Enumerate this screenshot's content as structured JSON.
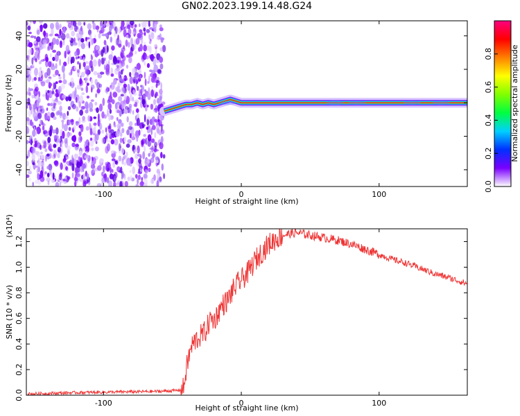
{
  "title": "GN02.2023.199.14.48.G24",
  "chart_data": [
    {
      "type": "heatmap",
      "title": "GN02.2023.199.14.48.G24",
      "xlabel": "Height of straight line (km)",
      "ylabel": "Frequency (Hz)",
      "xlim": [
        -156,
        164
      ],
      "ylim": [
        -50,
        49
      ],
      "x_ticks": [
        "-100",
        "0",
        "100"
      ],
      "y_ticks": [
        "-40",
        "-20",
        "0",
        "20",
        "40"
      ],
      "noise_region_x": [
        -156,
        -56
      ],
      "signal_track": {
        "x": [
          -56,
          -52,
          -48,
          -44,
          -40,
          -36,
          -32,
          -28,
          -24,
          -20,
          -16,
          -12,
          -8,
          -4,
          0,
          20,
          40,
          60,
          80,
          100,
          120,
          140,
          164
        ],
        "freq": [
          -5,
          -4,
          -3,
          -2,
          -1,
          -1,
          0,
          -1,
          0,
          -1,
          0,
          1,
          2,
          1,
          0,
          0,
          0,
          0,
          0,
          0,
          0,
          0,
          0
        ]
      },
      "colorbar": {
        "label": "Normalized spectral amplitude",
        "ticks": [
          "0.0",
          "0.2",
          "0.4",
          "0.6",
          "0.8"
        ],
        "range": [
          0,
          1
        ],
        "colors": [
          "#ffffff",
          "#7a00ff",
          "#0030ff",
          "#00d0ff",
          "#00ff40",
          "#80ff00",
          "#ffff00",
          "#ff8000",
          "#ff0000",
          "#ff0080"
        ]
      }
    },
    {
      "type": "line",
      "xlabel": "Height of straight line (km)",
      "ylabel": "SNR (10 * v/v)",
      "y_multiplier": "(x10⁴)",
      "xlim": [
        -156,
        164
      ],
      "ylim": [
        0,
        1.3
      ],
      "x_ticks": [
        "-100",
        "0",
        "100"
      ],
      "y_ticks": [
        "0.0",
        "0.2",
        "0.4",
        "0.6",
        "0.8",
        "1.0",
        "1.2"
      ],
      "series": [
        {
          "color": "#ee3333",
          "x": [
            -156,
            -120,
            -90,
            -60,
            -50,
            -44,
            -42,
            -40,
            -38,
            -36,
            -34,
            -32,
            -30,
            -28,
            -26,
            -24,
            -22,
            -20,
            -18,
            -16,
            -14,
            -12,
            -10,
            -8,
            -6,
            -4,
            -2,
            0,
            5,
            10,
            15,
            20,
            25,
            30,
            35,
            40,
            45,
            50,
            60,
            70,
            80,
            90,
            100,
            110,
            120,
            130,
            140,
            150,
            164
          ],
          "y": [
            0.01,
            0.02,
            0.025,
            0.03,
            0.035,
            0.04,
            0.05,
            0.2,
            0.3,
            0.38,
            0.42,
            0.44,
            0.46,
            0.48,
            0.5,
            0.55,
            0.6,
            0.58,
            0.62,
            0.66,
            0.7,
            0.72,
            0.74,
            0.78,
            0.82,
            0.85,
            0.88,
            0.9,
            0.96,
            1.05,
            1.12,
            1.18,
            1.22,
            1.25,
            1.26,
            1.27,
            1.26,
            1.25,
            1.23,
            1.21,
            1.18,
            1.14,
            1.1,
            1.06,
            1.03,
            0.99,
            0.95,
            0.92,
            0.87
          ]
        }
      ]
    }
  ]
}
